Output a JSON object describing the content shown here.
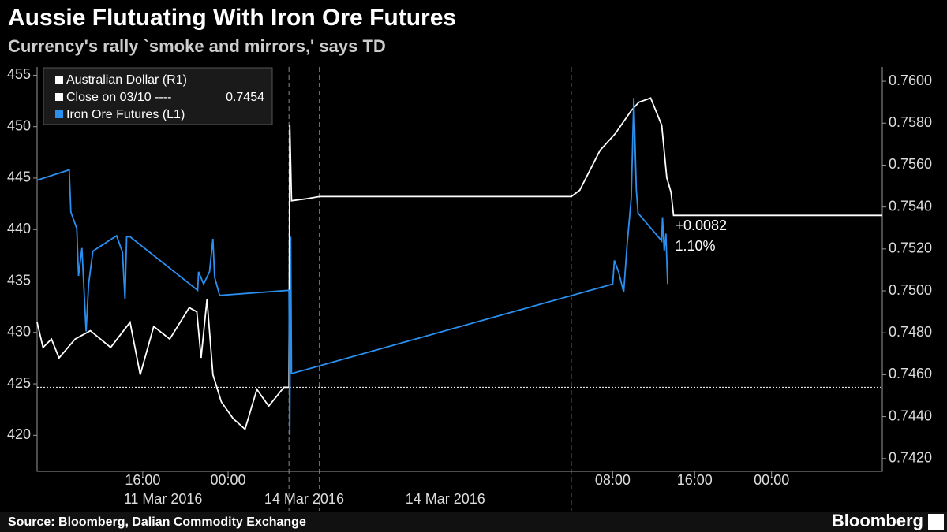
{
  "chart_data": {
    "type": "line",
    "title": "Aussie Flutuating With Iron Ore Futures",
    "subtitle": "Currency's rally `smoke and mirrors,' says TD",
    "source": "Source: Bloomberg, Dalian Commodity Exchange",
    "brand": "Bloomberg",
    "legend": {
      "close_label": "Close on 03/10 ----",
      "close_value": 0.7454
    },
    "annotations": [
      "+0.0082",
      "1.10%"
    ],
    "xlim": [
      0,
      100
    ],
    "xticks": [
      {
        "value": 12.5,
        "label": "16:00"
      },
      {
        "value": 22.6,
        "label": "00:00"
      },
      {
        "value": 68.1,
        "label": "08:00"
      },
      {
        "value": 77.8,
        "label": "16:00"
      },
      {
        "value": 86.9,
        "label": "00:00"
      }
    ],
    "session_breaks": [
      29.8,
      33.4,
      63.2
    ],
    "x_groups": [
      "11 Mar 2016",
      "14 Mar 2016",
      "14 Mar 2016"
    ],
    "ylim": [
      416.5,
      455.8
    ],
    "yticks": [
      420,
      425,
      430,
      435,
      440,
      445,
      450,
      455
    ],
    "y2lim": [
      0.74139,
      0.76068
    ],
    "y2ticks": [
      {
        "value": 0.742,
        "label": "0.7420"
      },
      {
        "value": 0.744,
        "label": "0.7440"
      },
      {
        "value": 0.746,
        "label": "0.7460"
      },
      {
        "value": 0.748,
        "label": "0.7480"
      },
      {
        "value": 0.75,
        "label": "0.7500"
      },
      {
        "value": 0.752,
        "label": "0.7520"
      },
      {
        "value": 0.754,
        "label": "0.7540"
      },
      {
        "value": 0.756,
        "label": "0.7560"
      },
      {
        "value": 0.758,
        "label": "0.7580"
      },
      {
        "value": 0.76,
        "label": "0.7600"
      }
    ],
    "series": [
      {
        "name": "Australian Dollar  (R1)",
        "color": "#ffffff",
        "axis": "y2",
        "x": [
          0,
          0.7,
          1.7,
          2.6,
          4.5,
          6.3,
          8.7,
          11.0,
          12.2,
          13.8,
          15.7,
          18.0,
          18.9,
          19.4,
          20.1,
          20.8,
          21.8,
          23.2,
          24.6,
          26.0,
          27.4,
          29.2,
          29.8,
          29.9,
          30.1,
          32.0,
          33.4,
          63.2,
          64.2,
          66.6,
          68.4,
          70.3,
          71.2,
          72.6,
          73.9,
          74.5,
          75.0,
          75.3,
          100
        ],
        "values": [
          0.7485,
          0.7473,
          0.7477,
          0.7468,
          0.7477,
          0.7481,
          0.7473,
          0.7485,
          0.746,
          0.7483,
          0.7477,
          0.7492,
          0.749,
          0.7468,
          0.7496,
          0.746,
          0.7447,
          0.7439,
          0.7434,
          0.7453,
          0.7445,
          0.7454,
          0.7454,
          0.7579,
          0.7543,
          0.7544,
          0.7545,
          0.7545,
          0.7548,
          0.7567,
          0.7575,
          0.7586,
          0.759,
          0.7592,
          0.7579,
          0.7554,
          0.7547,
          0.7536,
          0.7536
        ]
      },
      {
        "name": "Iron Ore Futures (L1)",
        "color": "#2b8ff0",
        "x": [
          0,
          3.8,
          4.0,
          4.7,
          4.9,
          5.3,
          5.8,
          6.1,
          6.6,
          9.4,
          10.1,
          10.4,
          10.6,
          11.0,
          19.0,
          19.1,
          19.7,
          20.4,
          20.8,
          21.0,
          21.6,
          29.8,
          29.9,
          30.0,
          30.1,
          68.1,
          68.3,
          68.8,
          69.4,
          69.8,
          70.3,
          70.6,
          70.9,
          71.1,
          73.9,
          74.0,
          74.2,
          74.4,
          74.6
        ],
        "values": [
          444.8,
          445.8,
          441.7,
          440.1,
          435.5,
          438.2,
          430.1,
          434.7,
          437.9,
          439.4,
          437.8,
          433.2,
          439.3,
          439.3,
          434.1,
          435.9,
          434.7,
          435.9,
          439.1,
          435.4,
          433.6,
          434.1,
          420.0,
          439.3,
          426.0,
          434.7,
          437.0,
          435.9,
          433.9,
          438.5,
          443.1,
          452.8,
          443.9,
          441.6,
          438.9,
          441.2,
          437.9,
          439.6,
          434.7
        ]
      }
    ]
  }
}
